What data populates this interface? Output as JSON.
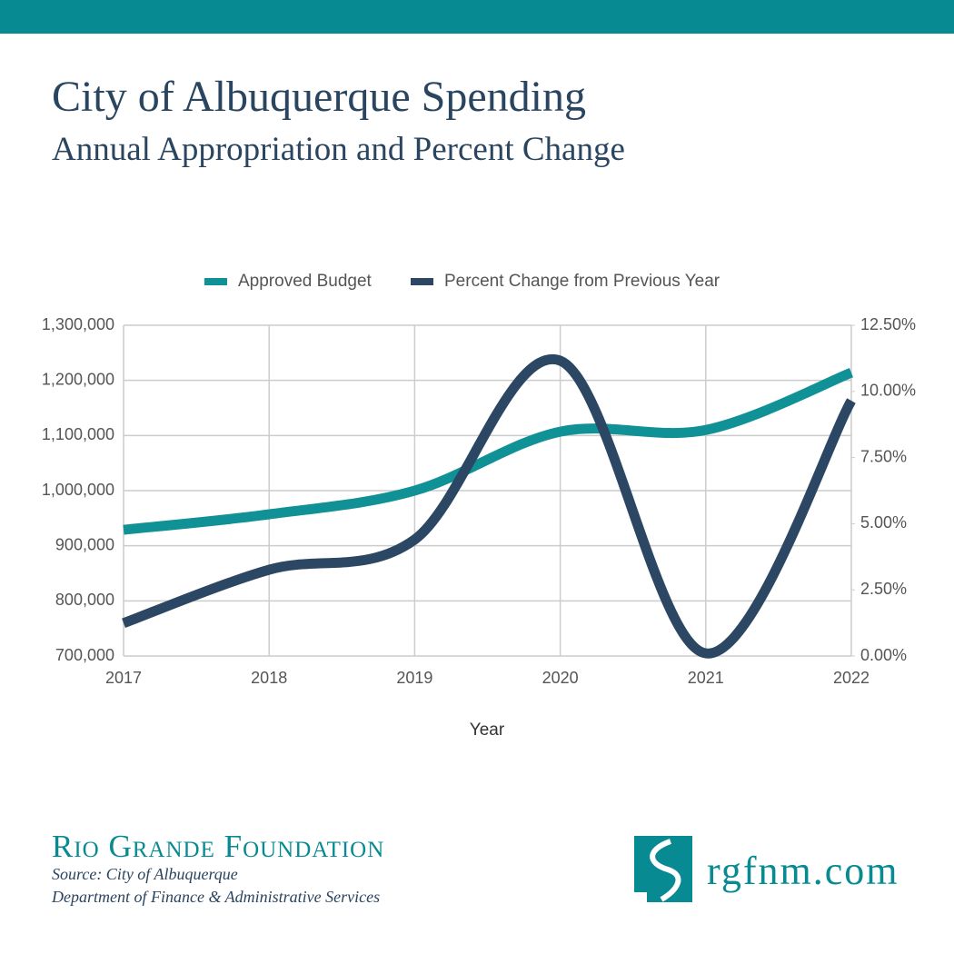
{
  "chart_data": {
    "type": "line",
    "title": "City of Albuquerque Spending",
    "subtitle": "Annual Appropriation and Percent Change",
    "x_label": "Year",
    "categories": [
      "2017",
      "2018",
      "2019",
      "2020",
      "2021",
      "2022"
    ],
    "series": [
      {
        "name": "Approved Budget",
        "color": "#0f9196",
        "values": [
          929000,
          957000,
          1000000,
          1107000,
          1110000,
          1214000
        ]
      },
      {
        "name": "Percent Change from Previous Year",
        "color": "#2b4763",
        "axis": "y2",
        "values": [
          1.24,
          3.26,
          4.4,
          11.16,
          0.1,
          9.65
        ]
      }
    ],
    "ylim": [
      700000,
      1300000
    ],
    "yticks": [
      {
        "value": 700000,
        "label": "700,000"
      },
      {
        "value": 800000,
        "label": "800,000"
      },
      {
        "value": 900000,
        "label": "900,000"
      },
      {
        "value": 1000000,
        "label": "1,000,000"
      },
      {
        "value": 1100000,
        "label": "1,100,000"
      },
      {
        "value": 1200000,
        "label": "1,200,000"
      },
      {
        "value": 1300000,
        "label": "1,300,000"
      }
    ],
    "y2lim": [
      0,
      12.5
    ],
    "y2ticks": [
      {
        "value": 0,
        "label": "0.00%"
      },
      {
        "value": 2.5,
        "label": "2.50%"
      },
      {
        "value": 5,
        "label": "5.00%"
      },
      {
        "value": 7.5,
        "label": "7.50%"
      },
      {
        "value": 10,
        "label": "10.00%"
      },
      {
        "value": 12.5,
        "label": "12.50%"
      }
    ],
    "grid": true,
    "legend": "top"
  },
  "footer": {
    "organization": "Rio Grande Foundation",
    "source": [
      "Source: City of Albuquerque",
      "Department of Finance & Administrative Services"
    ],
    "website": "rgfnm.com"
  }
}
